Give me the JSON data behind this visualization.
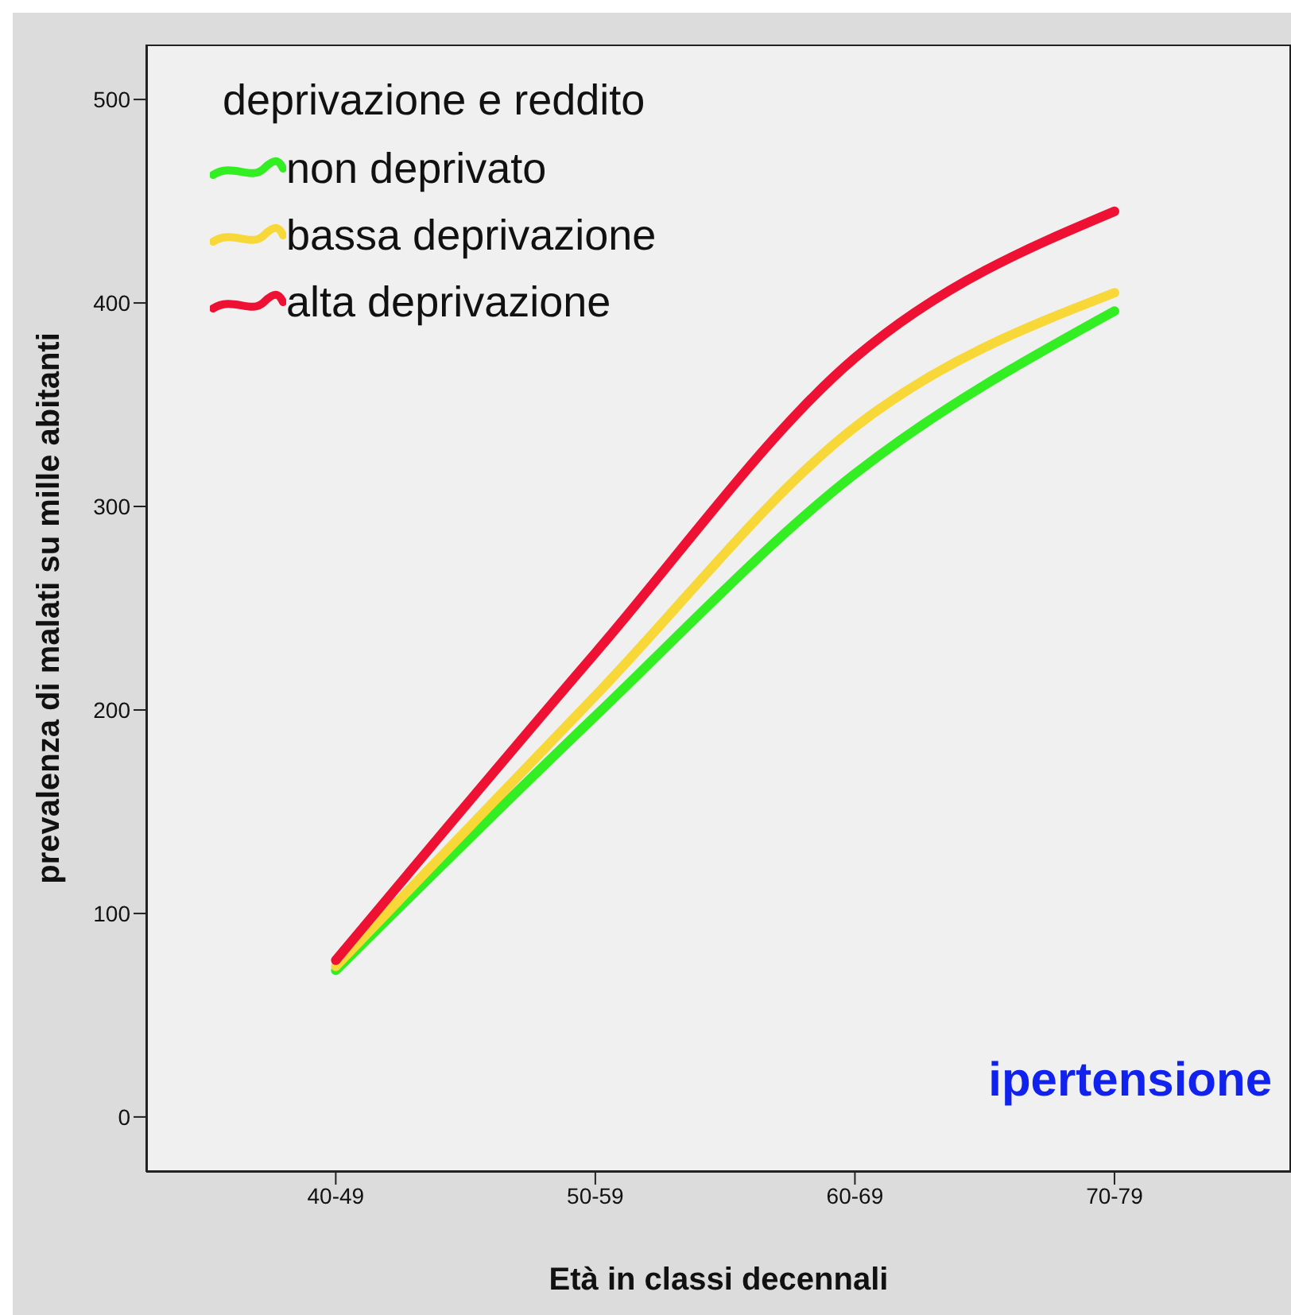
{
  "chart_data": {
    "type": "line",
    "xlabel": "Età  in classi decennali",
    "ylabel": "prevalenza di malati su mille abitanti",
    "legend_title": "deprivazione e reddito",
    "legend": "top left",
    "marker": "none",
    "line_style": "solid",
    "categories": [
      "40-49",
      "50-59",
      "60-69",
      "70-79"
    ],
    "ylim": [
      -27,
      527
    ],
    "yticks": [
      0,
      100,
      200,
      300,
      400,
      500
    ],
    "series": [
      {
        "name": "non deprivato",
        "color": "#33ee22",
        "values": [
          72,
          197,
          316,
          396
        ]
      },
      {
        "name": "bassa deprivazione",
        "color": "#f8d838",
        "values": [
          74,
          207,
          339,
          405
        ]
      },
      {
        "name": "alta deprivazione",
        "color": "#ee1133",
        "values": [
          77,
          228,
          373,
          445
        ]
      }
    ],
    "annotations": [
      "ipertensione"
    ]
  }
}
